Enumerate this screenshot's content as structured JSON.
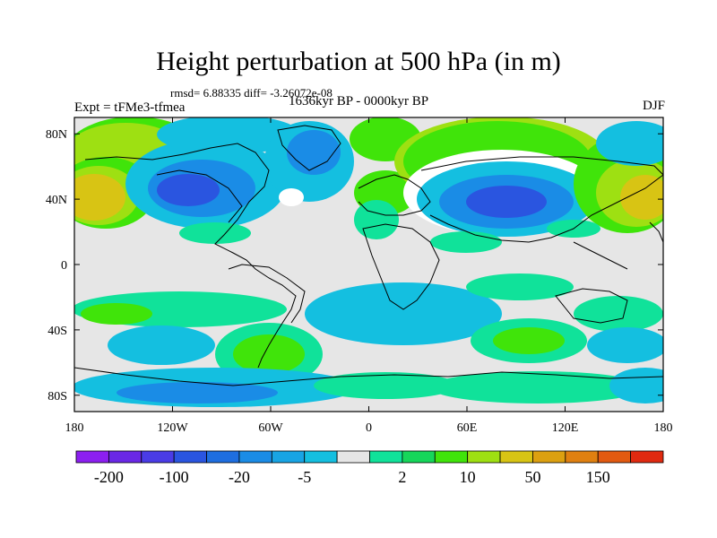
{
  "title": "Height perturbation at 500 hPa (in m)",
  "stats": "rmsd= 6.88335 diff= -3.26072e-08",
  "experiment": "Expt = tFMe3-tfmea",
  "period": "1636kyr BP - 0000kyr BP",
  "season": "DJF",
  "map": {
    "projection": "cylindrical-equidistant",
    "lon_range": [
      -180,
      180
    ],
    "lat_range": [
      -90,
      90
    ],
    "lon_ticks": [
      "180",
      "120W",
      "60W",
      "0",
      "60E",
      "120E",
      "180"
    ],
    "lat_ticks": [
      "80N",
      "40N",
      "0",
      "40S",
      "80S"
    ],
    "lat_tick_values": [
      80,
      40,
      0,
      -40,
      -80
    ]
  },
  "colorbar": {
    "labels": [
      "-200",
      "-100",
      "-20",
      "-5",
      "2",
      "10",
      "50",
      "150"
    ],
    "colors": [
      "#8c1ff0",
      "#6a28e6",
      "#4a3ce6",
      "#2a55e0",
      "#1e6ee0",
      "#1a8ce6",
      "#18a4e4",
      "#14bfe0",
      "#e6e6e6",
      "#10e29a",
      "#16d65a",
      "#40e40a",
      "#9ee012",
      "#d8c414",
      "#dca010",
      "#e08010",
      "#e25a10",
      "#e02a10"
    ]
  },
  "palette": {
    "neutral": "#e6e6e6",
    "weak_neg": "#14bfe0",
    "mid_neg": "#1a8ce6",
    "strong_neg": "#2a55e0",
    "weak_pos": "#10e29a",
    "mid_pos": "#40e40a",
    "strong_pos": "#9ee012",
    "very_pos": "#d8c414"
  }
}
